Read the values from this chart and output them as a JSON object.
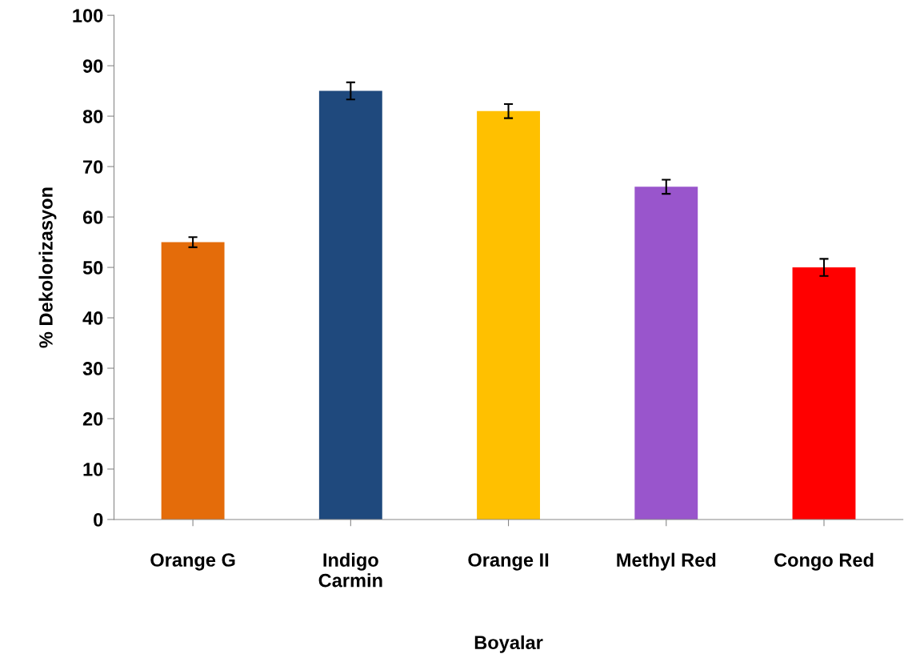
{
  "chart_data": {
    "type": "bar",
    "xlabel": "Boyalar",
    "ylabel": "% Dekolorizasyon",
    "categories": [
      "Orange G",
      "Indigo\nCarmin",
      "Orange II",
      "Methyl Red",
      "Congo Red"
    ],
    "values": [
      55,
      85,
      81,
      66,
      50
    ],
    "errors": [
      1,
      1.7,
      1.4,
      1.4,
      1.7
    ],
    "colors": [
      "#e46c0a",
      "#1f497d",
      "#ffc000",
      "#9955cc",
      "#ff0000"
    ],
    "ylim": [
      0,
      100
    ],
    "yticks": [
      0,
      10,
      20,
      30,
      40,
      50,
      60,
      70,
      80,
      90,
      100
    ],
    "grid": false
  }
}
